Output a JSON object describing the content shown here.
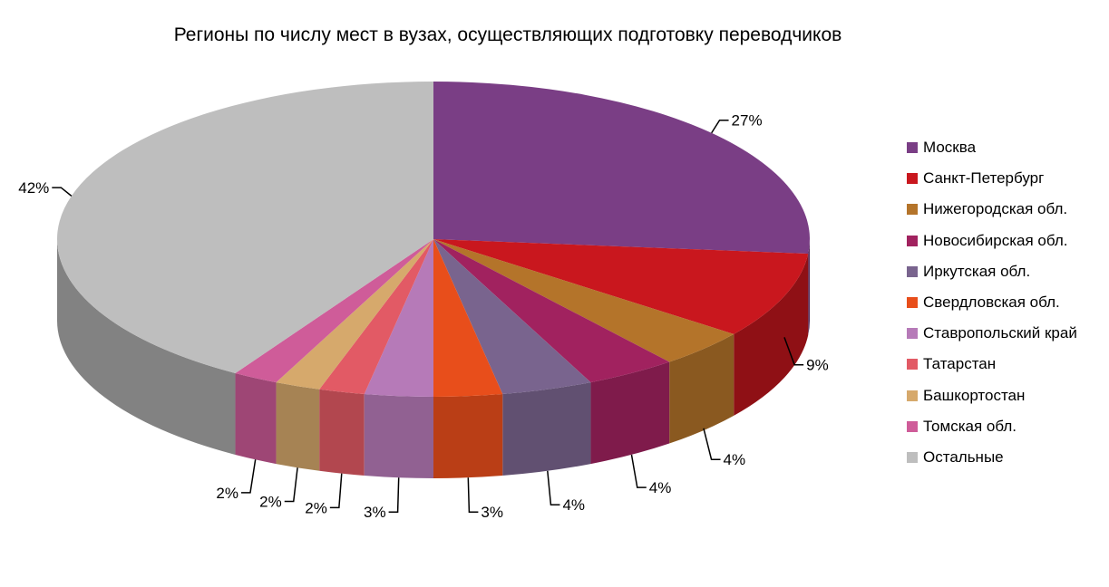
{
  "chart_data": {
    "type": "pie",
    "title": "Регионы по числу мест в вузах, осуществляющих подготовку переводчиков",
    "legend_position": "right",
    "slices": [
      {
        "name": "Москва",
        "value": 27,
        "label": "27%",
        "color": "#7A3E85"
      },
      {
        "name": "Санкт-Петербург",
        "value": 9,
        "label": "9%",
        "color": "#C9171E"
      },
      {
        "name": "Нижегородская обл.",
        "value": 4,
        "label": "4%",
        "color": "#B4742A"
      },
      {
        "name": "Новосибирская обл.",
        "value": 4,
        "label": "4%",
        "color": "#A1225F"
      },
      {
        "name": "Иркутская обл.",
        "value": 4,
        "label": "4%",
        "color": "#79648E"
      },
      {
        "name": "Свердловская обл.",
        "value": 3,
        "label": "3%",
        "color": "#E84E1B"
      },
      {
        "name": "Ставропольский край",
        "value": 3,
        "label": "3%",
        "color": "#B67AB8"
      },
      {
        "name": "Татарстан",
        "value": 2,
        "label": "2%",
        "color": "#E25A65"
      },
      {
        "name": "Башкортостан",
        "value": 2,
        "label": "2%",
        "color": "#D6A96C"
      },
      {
        "name": "Томская обл.",
        "value": 2,
        "label": "2%",
        "color": "#CF5C99"
      },
      {
        "name": "Остальные",
        "value": 42,
        "label": "42%",
        "color": "#BEBEBE"
      }
    ]
  }
}
